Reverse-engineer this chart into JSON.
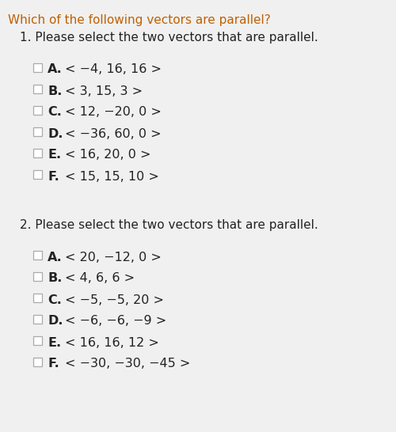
{
  "bg_color": "#f0f0f0",
  "title": "Which of the following vectors are parallel?",
  "title_color": "#c06000",
  "title_fontsize": 11.0,
  "section1_header": "1. Please select the two vectors that are parallel.",
  "section2_header": "2. Please select the two vectors that are parallel.",
  "section_header_color": "#222222",
  "section_header_fontsize": 11.0,
  "options1": [
    [
      "A",
      "< −4, 16, 16 >"
    ],
    [
      "B",
      "< 3, 15, 3 >"
    ],
    [
      "C",
      "< 12, −20, 0 >"
    ],
    [
      "D",
      "< −36, 60, 0 >"
    ],
    [
      "E",
      "< 16, 20, 0 >"
    ],
    [
      "F",
      "< 15, 15, 10 >"
    ]
  ],
  "options2": [
    [
      "A",
      "< 20, −12, 0 >"
    ],
    [
      "B",
      "< 4, 6, 6 >"
    ],
    [
      "C",
      "< −5, −5, 20 >"
    ],
    [
      "D",
      "< −6, −6, −9 >"
    ],
    [
      "E",
      "< 16, 16, 12 >"
    ],
    [
      "F",
      "< −30, −30, −45 >"
    ]
  ],
  "option_color": "#222222",
  "option_fontsize": 11.5,
  "checkbox_edge_color": "#aaaaaa",
  "checkbox_face_color": "#ffffff"
}
